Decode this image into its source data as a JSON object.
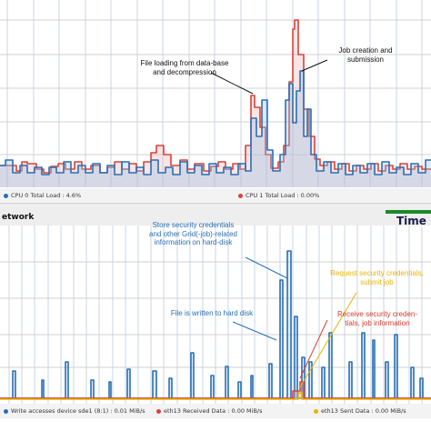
{
  "cpu_panel": {
    "legend": [
      {
        "label": "CPU 0 Total Load : 4.6%",
        "color": "#2a6fb4"
      },
      {
        "label": "CPU 1 Total Load : 0.00%",
        "color": "#d9433a"
      }
    ],
    "annotations": {
      "file_loading": "File loading from data-base\nand decompression",
      "job_creation": "Job creation and\nsubmission"
    }
  },
  "section": {
    "network_label": "etwork",
    "time_label": "Time"
  },
  "network_panel": {
    "legend": [
      {
        "label": "Write accesses device sde1 (8:1) : 0.01 MiB/s",
        "color": "#2a6fb4"
      },
      {
        "label": "eth13 Received Data : 0.00 MiB/s",
        "color": "#d9433a"
      },
      {
        "label": "eth13 Sent Data : 0.00 MiB/s",
        "color": "#e8b400"
      }
    ],
    "annotations": {
      "store_credentials": "Store security credentials\nand other Grid(-job)-related\ninformation on hard-disk",
      "request_credentials": "Request security credentials,\nsubmit job",
      "file_written": "File is written to hard disk",
      "receive_credentials": "Receive security creden-\ntials, job information"
    }
  },
  "colors": {
    "cpu0": "#2a6fb4",
    "cpu1": "#d9433a",
    "sent": "#e8b400",
    "annotation_blue": "#2a6fb4",
    "annotation_yellow": "#e8b400",
    "annotation_red": "#d93a2b",
    "time_bar": "#1a8a2a"
  }
}
